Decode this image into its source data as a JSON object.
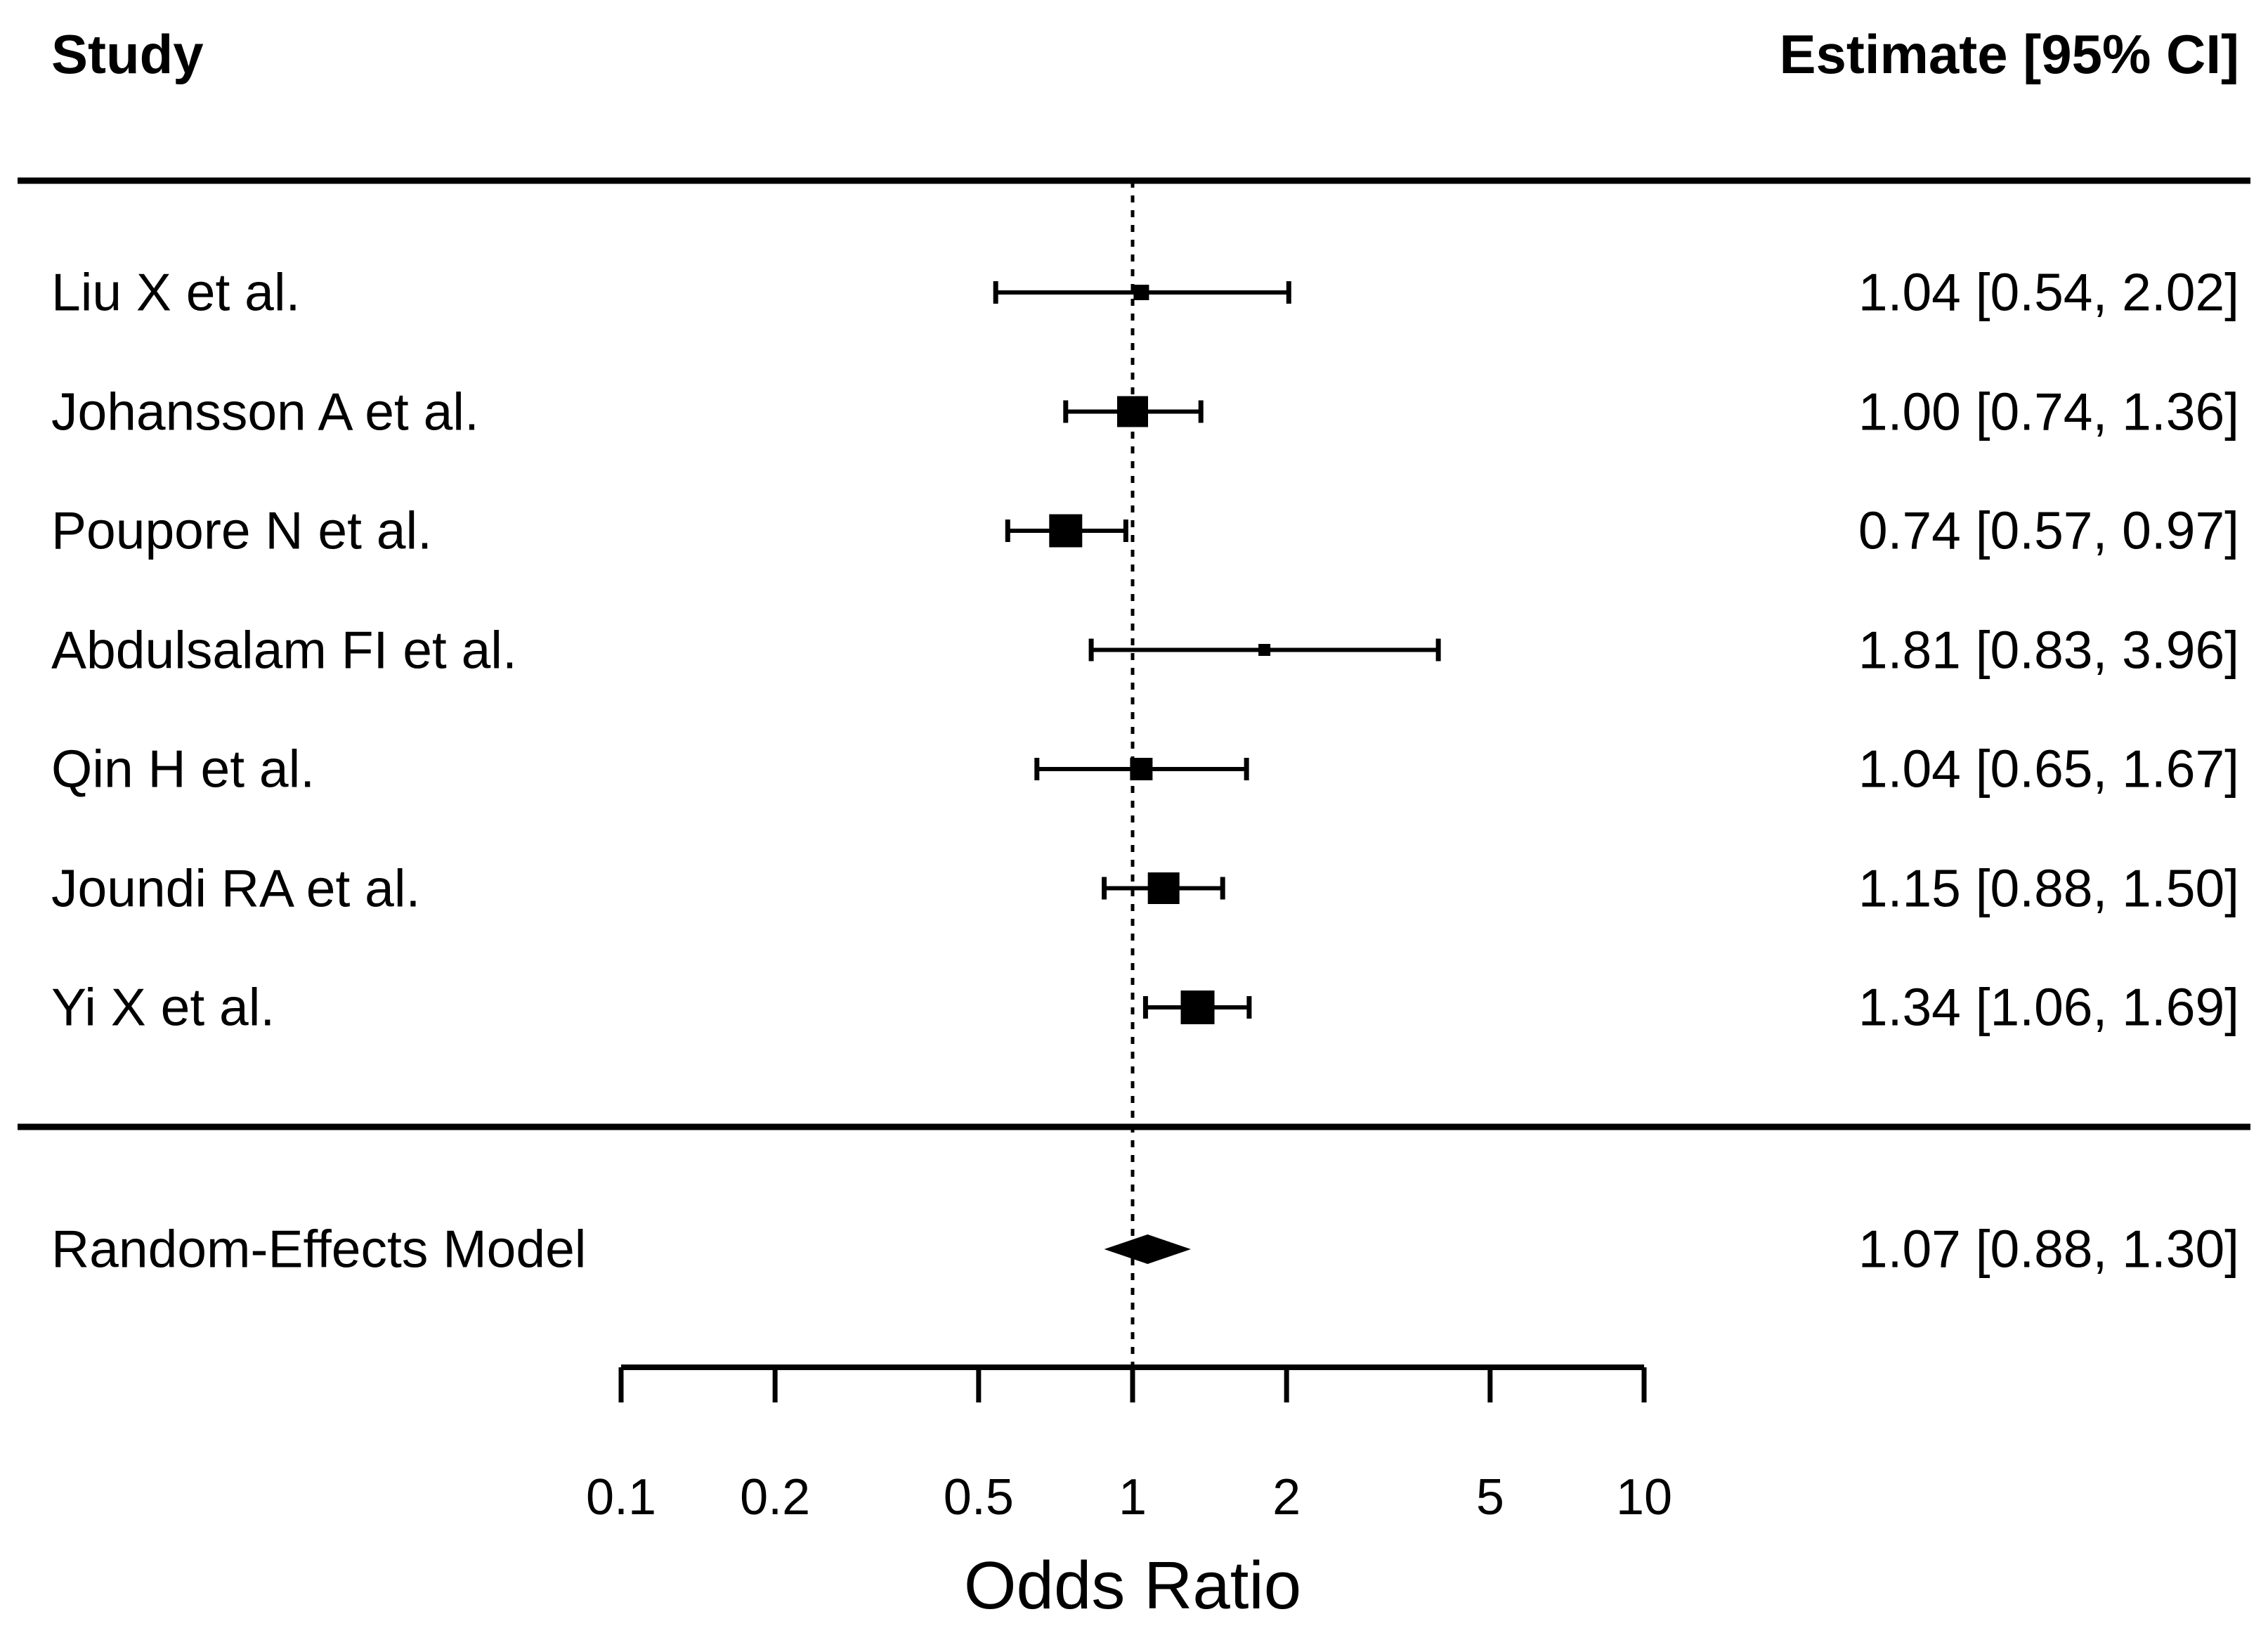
{
  "figure": {
    "header_left": "Study",
    "header_right": "Estimate [95% CI]"
  },
  "colors": {
    "foreground": "#000000",
    "background": "#ffffff"
  },
  "chart_data": {
    "type": "forest",
    "title": "",
    "xlabel": "Odds Ratio",
    "x_scale": "log10",
    "axis": {
      "range": [
        0.1,
        10
      ],
      "ticks": [
        0.1,
        0.2,
        0.5,
        1,
        2,
        5,
        10
      ],
      "tick_labels": [
        "0.1",
        "0.2",
        "0.5",
        "1",
        "2",
        "5",
        "10"
      ],
      "reference_line": 1,
      "grid": false
    },
    "columns": {
      "left_header": "Study",
      "right_header": "Estimate [95% CI]"
    },
    "studies": [
      {
        "name": "Liu X et al.",
        "estimate": 1.04,
        "ci_lower": 0.54,
        "ci_upper": 2.02,
        "label": "1.04 [0.54, 2.02]",
        "box_size": 22
      },
      {
        "name": "Johansson A et al.",
        "estimate": 1.0,
        "ci_lower": 0.74,
        "ci_upper": 1.36,
        "label": "1.00 [0.74, 1.36]",
        "box_size": 44
      },
      {
        "name": "Poupore N et al.",
        "estimate": 0.74,
        "ci_lower": 0.57,
        "ci_upper": 0.97,
        "label": "0.74 [0.57, 0.97]",
        "box_size": 47
      },
      {
        "name": "Abdulsalam FI et al.",
        "estimate": 1.81,
        "ci_lower": 0.83,
        "ci_upper": 3.96,
        "label": "1.81 [0.83, 3.96]",
        "box_size": 17
      },
      {
        "name": "Qin H et al.",
        "estimate": 1.04,
        "ci_lower": 0.65,
        "ci_upper": 1.67,
        "label": "1.04 [0.65, 1.67]",
        "box_size": 32
      },
      {
        "name": "Joundi RA et al.",
        "estimate": 1.15,
        "ci_lower": 0.88,
        "ci_upper": 1.5,
        "label": "1.15 [0.88, 1.50]",
        "box_size": 45
      },
      {
        "name": "Yi X et al.",
        "estimate": 1.34,
        "ci_lower": 1.06,
        "ci_upper": 1.69,
        "label": "1.34 [1.06, 1.69]",
        "box_size": 48
      }
    ],
    "summary": {
      "name": "Random-Effects Model",
      "estimate": 1.07,
      "ci_lower": 0.88,
      "ci_upper": 1.3,
      "label": "1.07 [0.88, 1.30]"
    }
  }
}
